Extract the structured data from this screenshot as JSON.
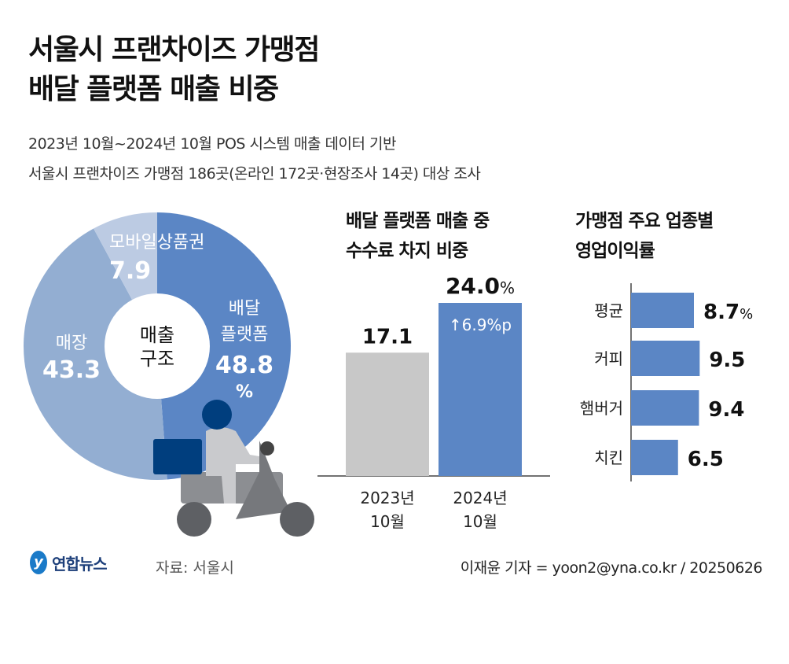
{
  "title_lines": [
    "서울시 프랜차이즈 가맹점",
    "배달 플랫폼 매출 비중"
  ],
  "subtitle_lines": [
    "2023년 10월~2024년 10월 POS 시스템 매출 데이터 기반",
    "서울시 프랜차이즈 가맹점 186곳(온라인 172곳·현장조사 14곳) 대상 조사"
  ],
  "footer": {
    "logo": "연합뉴스",
    "source": "자료: 서울시",
    "credit": "이재윤 기자 = yoon2@yna.co.kr / 20250626"
  },
  "colors": {
    "delivery": "#5b86c5",
    "store": "#93aed2",
    "mobile": "#bccbe3",
    "gray_bar": "#c8c8c8",
    "navy": "#003e7e"
  },
  "chart_data": [
    {
      "type": "pie",
      "title": "매출 구조",
      "center_label": [
        "매출",
        "구조"
      ],
      "unit": "%",
      "slices": [
        {
          "name": "배달 플랫폼",
          "label_lines": [
            "배달",
            "플랫폼"
          ],
          "value": 48.8,
          "value_label": "48.8",
          "unit_label": "%"
        },
        {
          "name": "매장",
          "label_lines": [
            "매장"
          ],
          "value": 43.3,
          "value_label": "43.3"
        },
        {
          "name": "모바일상품권",
          "label_lines": [
            "모바일상품권"
          ],
          "value": 7.9,
          "value_label": "7.9"
        }
      ]
    },
    {
      "type": "bar",
      "title_lines": [
        "배달 플랫폼 매출 중",
        "수수료 차지 비중"
      ],
      "unit": "%",
      "categories": [
        [
          "2023년",
          "10월"
        ],
        [
          "2024년",
          "10월"
        ]
      ],
      "values": [
        17.1,
        24.0
      ],
      "value_labels": [
        "17.1",
        "24.0"
      ],
      "unit_label": "%",
      "annotation": "↑6.9%p",
      "ylim": [
        0,
        24
      ]
    },
    {
      "type": "bar",
      "orientation": "horizontal",
      "title_lines": [
        "가맹점 주요 업종별",
        "영업이익률"
      ],
      "unit": "%",
      "categories": [
        "평균",
        "커피",
        "햄버거",
        "치킨"
      ],
      "values": [
        8.7,
        9.5,
        9.4,
        6.5
      ],
      "value_labels": [
        "8.7",
        "9.5",
        "9.4",
        "6.5"
      ],
      "unit_label": "%"
    }
  ]
}
